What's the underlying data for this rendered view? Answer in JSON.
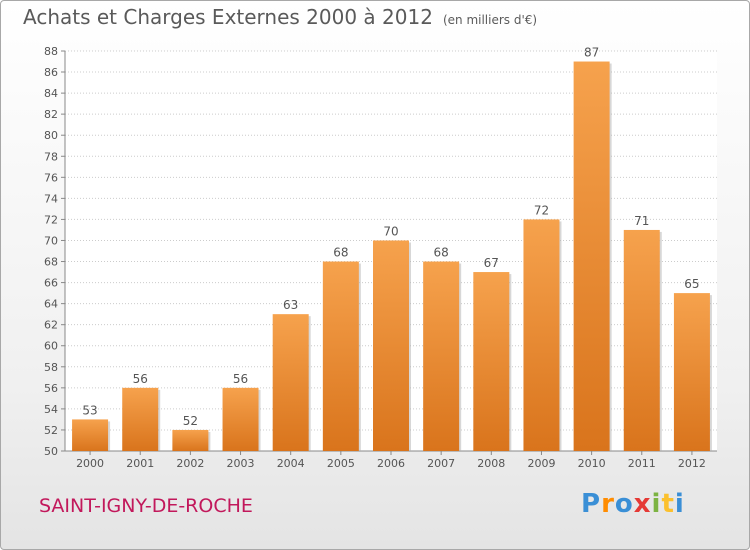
{
  "header": {
    "title": "Achats et Charges Externes 2000 à 2012",
    "unit": "(en milliers d'€)"
  },
  "commune": "SAINT-IGNY-DE-ROCHE",
  "logo": {
    "text": "Proxiti"
  },
  "colors": {
    "bar_top": "#f6a24d",
    "bar_bottom": "#d9741c",
    "commune": "#c2185b"
  },
  "chart_data": {
    "type": "bar",
    "categories": [
      "2000",
      "2001",
      "2002",
      "2003",
      "2004",
      "2005",
      "2006",
      "2007",
      "2008",
      "2009",
      "2010",
      "2011",
      "2012"
    ],
    "values": [
      53,
      56,
      52,
      56,
      63,
      68,
      70,
      68,
      67,
      72,
      87,
      71,
      65
    ],
    "title": "Achats et Charges Externes 2000 à 2012",
    "xlabel": "",
    "ylabel": "",
    "ylim": [
      50,
      88
    ],
    "yticks": [
      50,
      52,
      54,
      56,
      58,
      60,
      62,
      64,
      66,
      68,
      70,
      72,
      74,
      76,
      78,
      80,
      82,
      84,
      86,
      88
    ],
    "grid": true,
    "legend": "none"
  }
}
